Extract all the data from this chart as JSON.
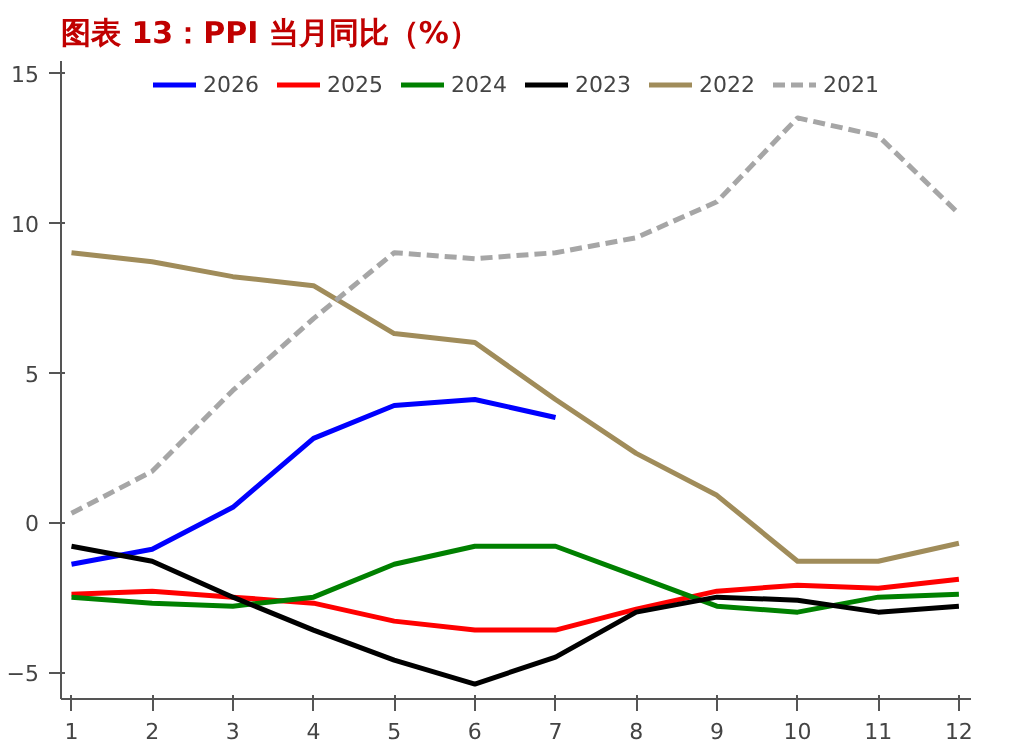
{
  "chart_data": {
    "type": "line",
    "title": "图表 13：PPI 当月同比（%）",
    "x": [
      1,
      2,
      3,
      4,
      5,
      6,
      7,
      8,
      9,
      10,
      11,
      12
    ],
    "xlim": [
      0.87,
      12.15
    ],
    "xticks": [
      1,
      2,
      3,
      4,
      5,
      6,
      7,
      8,
      9,
      10,
      11,
      12
    ],
    "ylim": [
      -5.9,
      15.4
    ],
    "yticks": [
      -5,
      0,
      5,
      10,
      15
    ],
    "grid": false,
    "legend": "top",
    "marker": "none",
    "series": [
      {
        "name": "2026",
        "color": "#0000ff",
        "values": [
          -1.4,
          -0.9,
          0.5,
          2.8,
          3.9,
          4.1,
          3.5,
          null,
          null,
          null,
          null,
          null
        ]
      },
      {
        "name": "2025",
        "color": "#ff0000",
        "values": [
          -2.4,
          -2.3,
          -2.5,
          -2.7,
          -3.3,
          -3.6,
          -3.6,
          -2.9,
          -2.3,
          -2.1,
          -2.2,
          -1.9
        ]
      },
      {
        "name": "2024",
        "color": "#008000",
        "values": [
          -2.5,
          -2.7,
          -2.8,
          -2.5,
          -1.4,
          -0.8,
          -0.8,
          -1.8,
          -2.8,
          -3.0,
          -2.5,
          -2.4
        ]
      },
      {
        "name": "2023",
        "color": "#000000",
        "values": [
          -0.8,
          -1.3,
          -2.5,
          -3.6,
          -4.6,
          -5.4,
          -4.5,
          -3.0,
          -2.5,
          -2.6,
          -3.0,
          -2.8
        ]
      },
      {
        "name": "2022",
        "color": "#a08c5a",
        "values": [
          9.0,
          8.7,
          8.2,
          7.9,
          6.3,
          6.0,
          4.1,
          2.3,
          0.9,
          -1.3,
          -1.3,
          -0.7
        ]
      },
      {
        "name": "2021",
        "color": "#a6a6a6",
        "line_style": "dashed",
        "values": [
          0.3,
          1.7,
          4.4,
          6.8,
          9.0,
          8.8,
          9.0,
          9.5,
          10.7,
          13.5,
          12.9,
          10.3
        ]
      }
    ]
  }
}
